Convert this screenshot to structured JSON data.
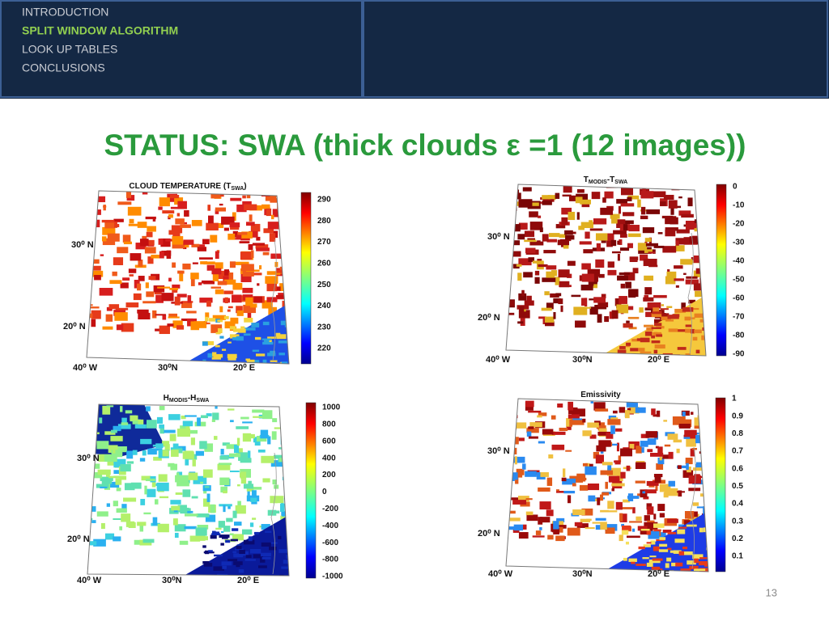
{
  "nav": {
    "items": [
      "INTRODUCTION",
      "SPLIT WINDOW ALGORITHM",
      "LOOK UP TABLES",
      "CONCLUSIONS"
    ]
  },
  "title": "STATUS: SWA (thick clouds ε =1 (12 images))",
  "panels": [
    {
      "title": [
        "CLOUD TEMPERATURE (T",
        "SWA",
        ")"
      ],
      "lat_labels": [
        "30⁰ N",
        "20⁰ N"
      ],
      "lon_labels": [
        "40⁰ W",
        "30⁰N",
        "20⁰ E"
      ],
      "colorbar_ticks": [
        290,
        280,
        270,
        260,
        250,
        240,
        230,
        220
      ]
    },
    {
      "title": [
        "T",
        "MODIS",
        "-T",
        "SWA"
      ],
      "lat_labels": [
        "30⁰ N",
        "20⁰ N"
      ],
      "lon_labels": [
        "40⁰ W",
        "30⁰N",
        "20⁰ E"
      ],
      "colorbar_ticks": [
        0,
        -10,
        -20,
        -30,
        -40,
        -50,
        -60,
        -70,
        -80,
        -90
      ]
    },
    {
      "title": [
        "H",
        "MODIS",
        "-H",
        "SWA"
      ],
      "lat_labels": [
        "30⁰ N",
        "20⁰ N"
      ],
      "lon_labels": [
        "40⁰ W",
        "30⁰N",
        "20⁰ E"
      ],
      "colorbar_ticks": [
        1000,
        800,
        600,
        400,
        200,
        0,
        -200,
        -400,
        -600,
        -800,
        -1000
      ]
    },
    {
      "title": [
        "Emissivity"
      ],
      "lat_labels": [
        "30⁰ N",
        "20⁰ N"
      ],
      "lon_labels": [
        "40⁰ W",
        "30⁰N",
        "20⁰ E"
      ],
      "colorbar_ticks": [
        1,
        0.9,
        0.8,
        0.7,
        0.6,
        0.5,
        0.4,
        0.3,
        0.2,
        0.1
      ]
    }
  ],
  "page_number": "13"
}
